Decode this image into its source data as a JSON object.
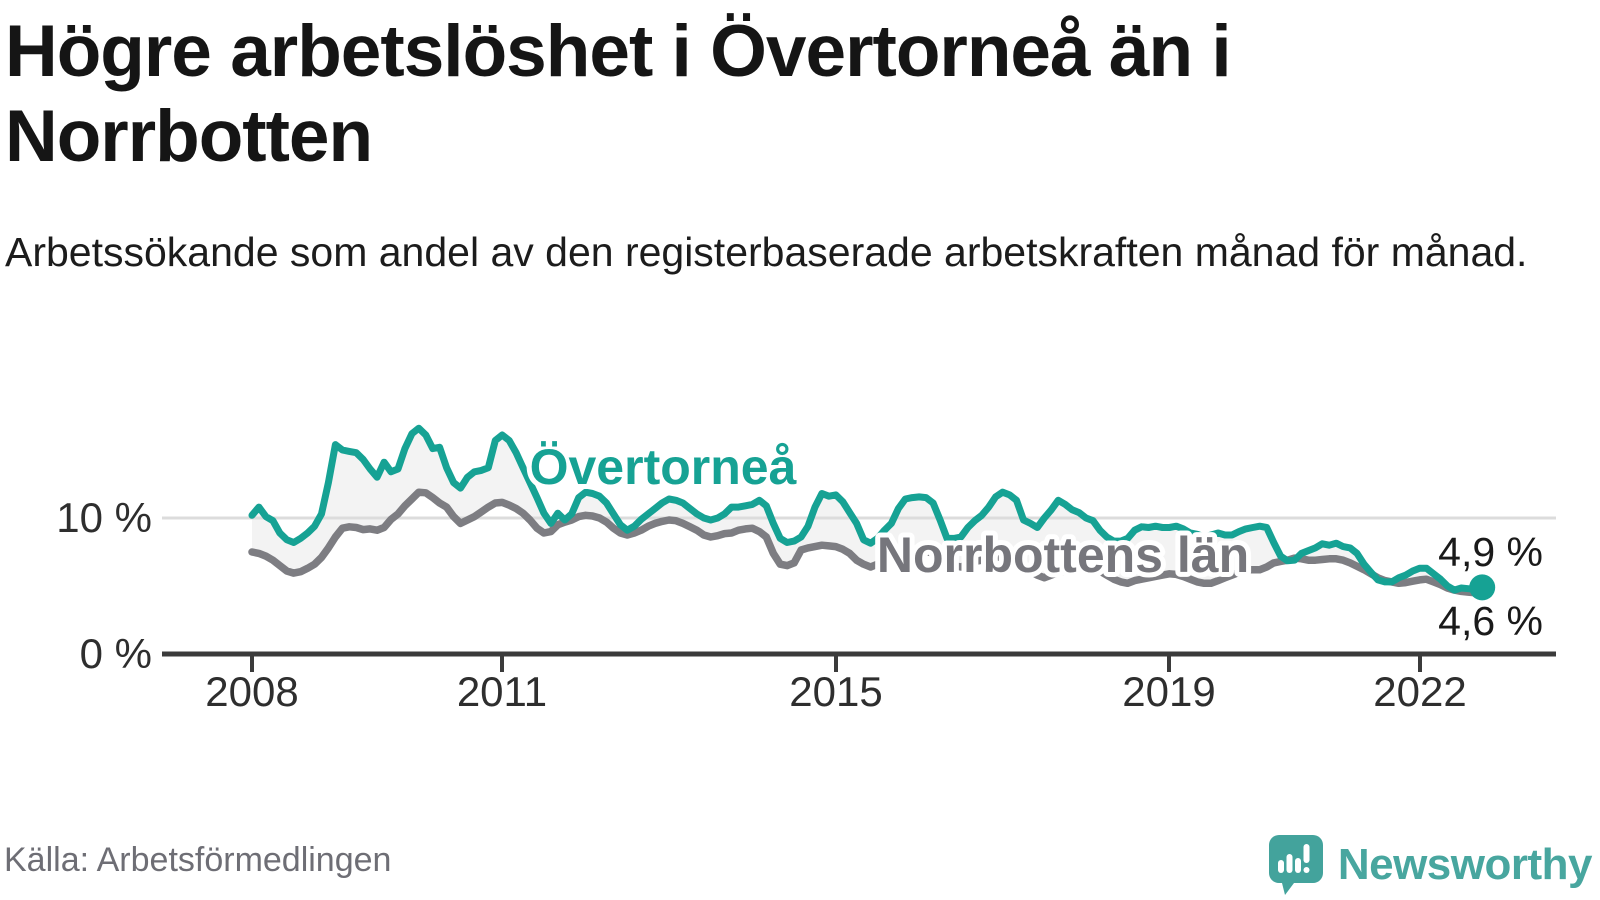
{
  "title": "Högre arbetslöshet i Övertorneå än i Norrbotten",
  "subtitle": "Arbetssökande som andel av den registerbaserade arbetskraften månad för månad.",
  "source": "Källa: Arbetsförmedlingen",
  "branding": {
    "name": "Newsworthy",
    "logo_color": "#43a39c",
    "text_color": "#48a69f"
  },
  "palette": {
    "accent_teal": "#16a294",
    "neutral_gray": "#7d7d82",
    "fill_between": "#f3f3f3",
    "gridline": "#dcdcdc",
    "axis": "#3b3b3b",
    "text_dark": "#1a1a1a"
  },
  "chart_data": {
    "type": "line",
    "title": "Högre arbetslöshet i Övertorneå än i Norrbotten",
    "xlabel": "",
    "ylabel": "Arbetssökande som andel av den registerbaserade arbetskraften",
    "frequency": "monthly",
    "x_start": "2008-01",
    "x_end": "2022-10",
    "x_ticks": [
      "2008",
      "2011",
      "2015",
      "2019",
      "2022"
    ],
    "x_tick_years": [
      2008,
      2011,
      2015,
      2019,
      2022
    ],
    "y_ticks": [
      {
        "value": 0,
        "label": "0 %"
      },
      {
        "value": 10,
        "label": "10 %"
      }
    ],
    "ylim": [
      0,
      20
    ],
    "grid": "horizontal line at 10% only",
    "legend_position": "inline labels on lines",
    "fill_between": "#f3f3f3",
    "series": [
      {
        "name": "Övertorneå",
        "color": "#16a294",
        "end_label": "4,9 %",
        "end_value": 4.9,
        "values": [
          10.2,
          10.8,
          10.1,
          9.8,
          8.9,
          8.4,
          8.2,
          8.5,
          8.9,
          9.4,
          10.3,
          12.6,
          15.4,
          15.0,
          14.9,
          14.8,
          14.3,
          13.6,
          13.0,
          14.1,
          13.4,
          13.6,
          15.1,
          16.2,
          16.6,
          16.1,
          15.1,
          15.2,
          13.7,
          12.6,
          12.2,
          13.0,
          13.4,
          13.5,
          13.7,
          15.7,
          16.1,
          15.7,
          14.8,
          13.7,
          12.6,
          11.5,
          10.35,
          9.6,
          10.35,
          9.85,
          10.3,
          11.5,
          11.9,
          11.8,
          11.6,
          11.1,
          10.3,
          9.5,
          9.1,
          9.4,
          9.9,
          10.3,
          10.7,
          11.1,
          11.4,
          11.3,
          11.1,
          10.7,
          10.3,
          10.0,
          9.85,
          10.0,
          10.3,
          10.8,
          10.8,
          10.9,
          11.0,
          11.3,
          10.9,
          9.6,
          8.5,
          8.2,
          8.3,
          8.6,
          9.4,
          10.8,
          11.8,
          11.6,
          11.7,
          11.2,
          10.4,
          9.6,
          8.4,
          8.15,
          8.5,
          9.1,
          9.6,
          10.7,
          11.4,
          11.5,
          11.55,
          11.5,
          11.1,
          9.85,
          8.5,
          8.5,
          8.6,
          9.3,
          9.8,
          10.2,
          10.8,
          11.55,
          11.9,
          11.7,
          11.3,
          9.85,
          9.6,
          9.3,
          10.0,
          10.6,
          11.3,
          11.0,
          10.6,
          10.4,
          10.0,
          9.8,
          9.1,
          8.6,
          8.3,
          8.3,
          8.5,
          9.1,
          9.35,
          9.3,
          9.4,
          9.3,
          9.3,
          9.4,
          9.2,
          8.9,
          8.8,
          8.6,
          8.75,
          8.9,
          8.75,
          8.75,
          9.0,
          9.2,
          9.3,
          9.4,
          9.3,
          8.2,
          7.2,
          6.85,
          6.9,
          7.4,
          7.6,
          7.8,
          8.1,
          8.0,
          8.15,
          7.9,
          7.8,
          7.4,
          6.6,
          6.0,
          5.45,
          5.3,
          5.3,
          5.6,
          5.8,
          6.1,
          6.3,
          6.3,
          5.9,
          5.5,
          5.0,
          4.7,
          4.85,
          4.8,
          4.75,
          4.9
        ]
      },
      {
        "name": "Norrbottens län",
        "color": "#7d7d82",
        "end_label": "4,6 %",
        "end_value": 4.6,
        "values": [
          7.5,
          7.4,
          7.2,
          6.9,
          6.5,
          6.1,
          5.95,
          6.05,
          6.3,
          6.6,
          7.1,
          7.8,
          8.6,
          9.25,
          9.35,
          9.3,
          9.15,
          9.2,
          9.1,
          9.3,
          9.9,
          10.3,
          10.9,
          11.4,
          11.9,
          11.85,
          11.5,
          11.1,
          10.8,
          10.1,
          9.6,
          9.85,
          10.1,
          10.45,
          10.8,
          11.1,
          11.15,
          10.95,
          10.7,
          10.35,
          9.85,
          9.25,
          8.9,
          9.0,
          9.5,
          9.7,
          9.85,
          10.1,
          10.2,
          10.15,
          10.0,
          9.7,
          9.25,
          8.9,
          8.75,
          8.9,
          9.1,
          9.4,
          9.6,
          9.75,
          9.85,
          9.8,
          9.6,
          9.35,
          9.1,
          8.75,
          8.6,
          8.7,
          8.85,
          8.9,
          9.1,
          9.2,
          9.25,
          9.0,
          8.6,
          7.4,
          6.6,
          6.5,
          6.7,
          7.65,
          7.8,
          7.9,
          8.0,
          7.95,
          7.9,
          7.7,
          7.4,
          6.9,
          6.6,
          6.4,
          6.6,
          7.05,
          7.2,
          7.3,
          7.35,
          7.5,
          7.6,
          7.55,
          7.4,
          7.1,
          6.8,
          6.5,
          6.4,
          6.6,
          6.8,
          6.9,
          7.0,
          7.1,
          7.15,
          7.1,
          6.9,
          6.5,
          6.1,
          5.8,
          5.6,
          5.8,
          6.0,
          6.1,
          6.2,
          6.3,
          6.35,
          6.3,
          6.1,
          5.8,
          5.5,
          5.3,
          5.2,
          5.4,
          5.5,
          5.6,
          5.7,
          5.8,
          5.9,
          5.85,
          5.7,
          5.5,
          5.3,
          5.2,
          5.2,
          5.4,
          5.6,
          5.8,
          6.0,
          6.2,
          6.2,
          6.2,
          6.4,
          6.7,
          6.8,
          6.9,
          7.05,
          7.0,
          6.9,
          6.9,
          6.95,
          7.0,
          7.0,
          6.9,
          6.7,
          6.45,
          6.2,
          5.9,
          5.6,
          5.4,
          5.3,
          5.2,
          5.25,
          5.35,
          5.45,
          5.5,
          5.3,
          5.1,
          4.85,
          4.7,
          4.6,
          4.55,
          4.5,
          4.6
        ]
      }
    ]
  }
}
